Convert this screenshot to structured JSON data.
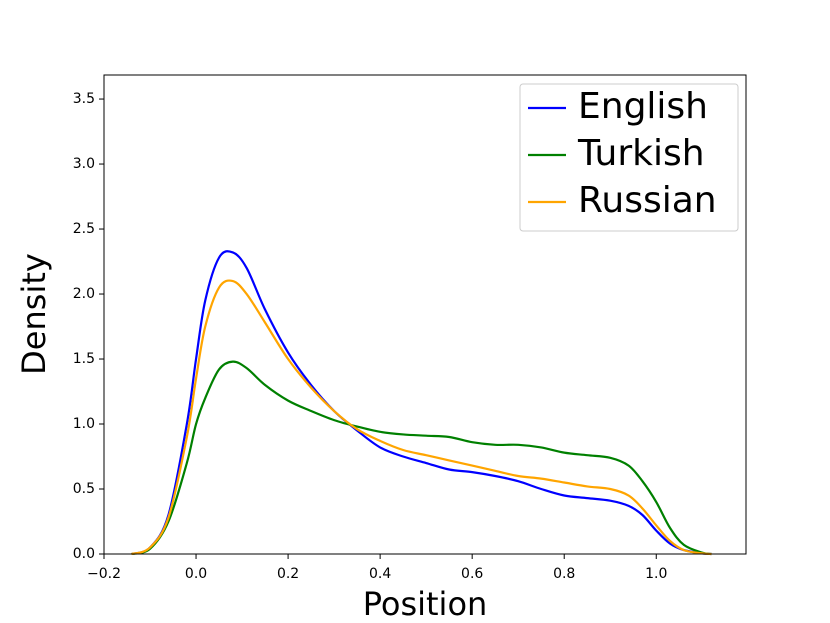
{
  "chart_data": {
    "type": "line",
    "xlabel": "Position",
    "ylabel": "Density",
    "x": [
      -0.14,
      -0.1,
      -0.06,
      -0.02,
      0,
      0.02,
      0.05,
      0.08,
      0.11,
      0.15,
      0.2,
      0.25,
      0.3,
      0.35,
      0.4,
      0.45,
      0.5,
      0.55,
      0.6,
      0.65,
      0.7,
      0.75,
      0.8,
      0.85,
      0.9,
      0.94,
      0.97,
      1.0,
      1.03,
      1.06,
      1.1,
      1.12
    ],
    "series": [
      {
        "name": "English",
        "color": "#0000ff",
        "values": [
          0,
          0.05,
          0.3,
          1.0,
          1.5,
          1.95,
          2.28,
          2.32,
          2.2,
          1.88,
          1.55,
          1.3,
          1.1,
          0.95,
          0.82,
          0.75,
          0.7,
          0.65,
          0.63,
          0.6,
          0.56,
          0.5,
          0.45,
          0.43,
          0.41,
          0.37,
          0.3,
          0.18,
          0.08,
          0.03,
          0.005,
          0
        ]
      },
      {
        "name": "Turkish",
        "color": "#008000",
        "values": [
          0,
          0.04,
          0.25,
          0.7,
          1.0,
          1.2,
          1.42,
          1.48,
          1.43,
          1.3,
          1.18,
          1.1,
          1.03,
          0.98,
          0.94,
          0.92,
          0.91,
          0.9,
          0.86,
          0.84,
          0.84,
          0.82,
          0.78,
          0.76,
          0.74,
          0.68,
          0.56,
          0.4,
          0.2,
          0.07,
          0.01,
          0
        ]
      },
      {
        "name": "Russian",
        "color": "#ffa500",
        "values": [
          0,
          0.05,
          0.28,
          0.9,
          1.35,
          1.75,
          2.05,
          2.1,
          2.0,
          1.78,
          1.5,
          1.28,
          1.1,
          0.96,
          0.87,
          0.8,
          0.76,
          0.72,
          0.68,
          0.64,
          0.6,
          0.58,
          0.55,
          0.52,
          0.5,
          0.45,
          0.35,
          0.22,
          0.1,
          0.03,
          0.005,
          0
        ]
      }
    ],
    "xlim": [
      -0.2,
      1.195
    ],
    "ylim": [
      0,
      3.685
    ],
    "xticks": [
      {
        "value": -0.2,
        "label": "−0.2"
      },
      {
        "value": 0,
        "label": "0.0"
      },
      {
        "value": 0.2,
        "label": "0.2"
      },
      {
        "value": 0.4,
        "label": "0.4"
      },
      {
        "value": 0.6,
        "label": "0.6"
      },
      {
        "value": 0.8,
        "label": "0.8"
      },
      {
        "value": 1,
        "label": "1.0"
      }
    ],
    "yticks": [
      {
        "value": 0,
        "label": "0.0"
      },
      {
        "value": 0.5,
        "label": "0.5"
      },
      {
        "value": 1,
        "label": "1.0"
      },
      {
        "value": 1.5,
        "label": "1.5"
      },
      {
        "value": 2,
        "label": "2.0"
      },
      {
        "value": 2.5,
        "label": "2.5"
      },
      {
        "value": 3,
        "label": "3.0"
      },
      {
        "value": 3.5,
        "label": "3.5"
      }
    ],
    "grid": false,
    "legend": "upper right"
  }
}
